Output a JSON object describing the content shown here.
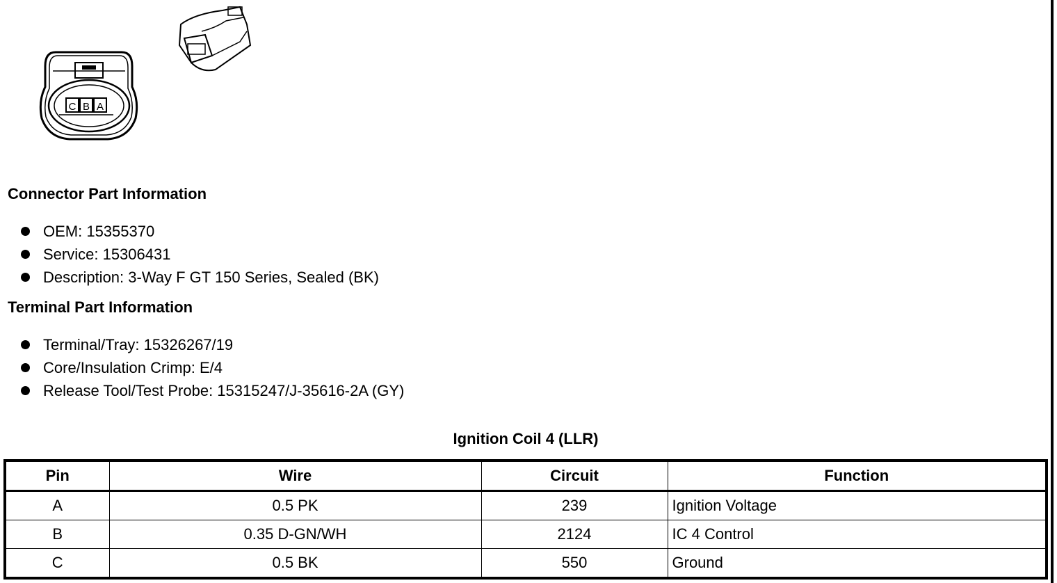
{
  "connector_face": {
    "pins": [
      "C",
      "B",
      "A"
    ]
  },
  "connector_info": {
    "heading": "Connector Part Information",
    "items": [
      "OEM: 15355370",
      "Service: 15306431",
      "Description: 3-Way F GT 150 Series, Sealed (BK)"
    ]
  },
  "terminal_info": {
    "heading": "Terminal Part Information",
    "items": [
      "Terminal/Tray: 15326267/19",
      "Core/Insulation Crimp: E/4",
      "Release Tool/Test Probe: 15315247/J-35616-2A (GY)"
    ]
  },
  "table": {
    "title": "Ignition Coil 4 (LLR)",
    "headers": [
      "Pin",
      "Wire",
      "Circuit",
      "Function"
    ],
    "rows": [
      [
        "A",
        "0.5 PK",
        "239",
        "Ignition Voltage"
      ],
      [
        "B",
        "0.35 D-GN/WH",
        "2124",
        "IC 4 Control"
      ],
      [
        "C",
        "0.5 BK",
        "550",
        "Ground"
      ]
    ]
  }
}
